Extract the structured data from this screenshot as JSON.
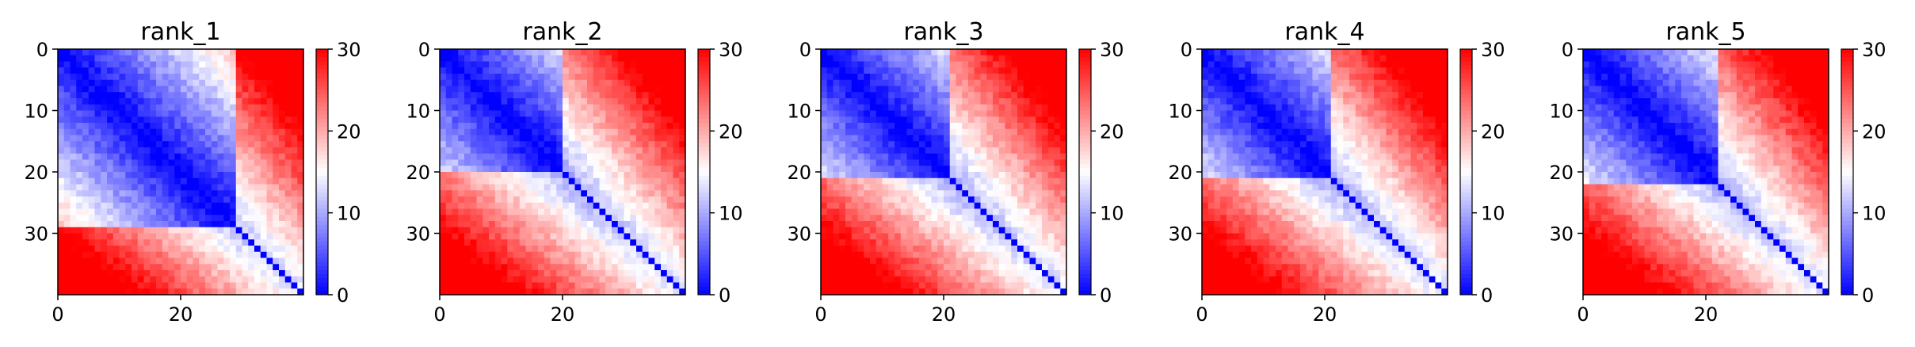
{
  "chart_data": {
    "type": "heatmap",
    "colormap": "bwr",
    "grid": false,
    "n": 40,
    "vmin": 0,
    "vmax": 30,
    "colorbar_ticks": [
      0,
      10,
      20,
      30
    ],
    "colorbar_tick_labels": [
      "0",
      "10",
      "20",
      "30"
    ],
    "x_ticks": [
      0,
      20
    ],
    "x_tick_labels": [
      "0",
      "20"
    ],
    "y_ticks": [
      0,
      10,
      20,
      30
    ],
    "y_tick_labels": [
      "0",
      "10",
      "20",
      "30"
    ],
    "panels": [
      {
        "title": "rank_1",
        "domain_split": 29
      },
      {
        "title": "rank_2",
        "domain_split": 20
      },
      {
        "title": "rank_3",
        "domain_split": 21
      },
      {
        "title": "rank_4",
        "domain_split": 21
      },
      {
        "title": "rank_5",
        "domain_split": 22
      }
    ]
  }
}
